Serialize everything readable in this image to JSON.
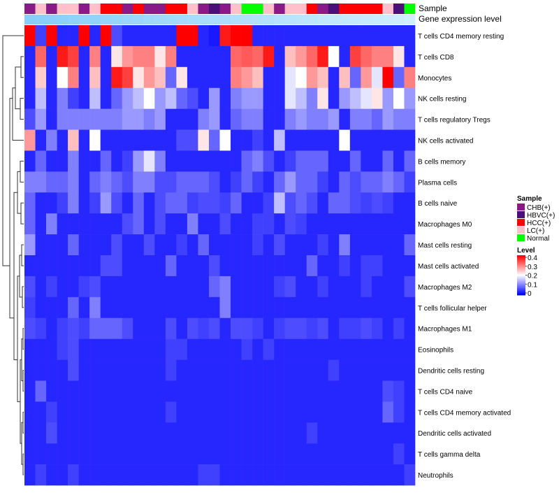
{
  "chart_data": {
    "type": "heatmap",
    "annotation_labels": [
      "Sample",
      "Gene expression level"
    ],
    "row_labels": [
      "T cells CD4 memory resting",
      "T cells CD8",
      "Monocytes",
      "NK cells resting",
      "T cells regulatory  Tregs",
      "NK cells activated",
      "B cells memory",
      "Plasma cells",
      "B cells naive",
      "Macrophages M0",
      "Mast cells resting",
      "Mast cells activated",
      "Macrophages M2",
      "T cells follicular helper",
      "Macrophages M1",
      "Eosinophils",
      "Dendritic cells resting",
      "T cells CD4 naive",
      "T cells CD4 memory activated",
      "Dendritic cells activated",
      "T cells gamma delta",
      "Neutrophils"
    ],
    "n_samples": 36,
    "sample_groups": [
      "CHB",
      "LC",
      "CHB",
      "LC",
      "LC",
      "CHB",
      "LC",
      "HCC",
      "HCC",
      "CHB",
      "HCC",
      "CHB",
      "CHB",
      "HCC",
      "HCC",
      "LC",
      "CHB",
      "HBVC",
      "CHB",
      "LC",
      "Normal",
      "Normal",
      "LC",
      "CHB",
      "LC",
      "LC",
      "HCC",
      "CHB",
      "HBVC",
      "HCC",
      "HCC",
      "HCC",
      "HCC",
      "LC",
      "HBVC",
      "Normal"
    ],
    "gene_expression_gradient": [
      "#87cefa",
      "#cfeefe"
    ],
    "values": [
      [
        0.4,
        0.05,
        0.4,
        0.03,
        0.03,
        0.4,
        0.03,
        0.4,
        0.06,
        0.03,
        0.03,
        0.03,
        0.03,
        0.03,
        0.4,
        0.4,
        0.03,
        0.02,
        0.38,
        0.4,
        0.4,
        0.03,
        0.03,
        0.03,
        0.03,
        0.03,
        0.03,
        0.03,
        0.03,
        0.03,
        0.03,
        0.03,
        0.03,
        0.03,
        0.03,
        0.03
      ],
      [
        0.03,
        0.32,
        0.03,
        0.38,
        0.35,
        0.03,
        0.3,
        0.03,
        0.22,
        0.28,
        0.3,
        0.3,
        0.22,
        0.3,
        0.03,
        0.03,
        0.03,
        0.03,
        0.03,
        0.32,
        0.33,
        0.32,
        0.38,
        0.03,
        0.25,
        0.28,
        0.32,
        0.38,
        0.2,
        0.03,
        0.35,
        0.32,
        0.3,
        0.3,
        0.22,
        0.03
      ],
      [
        0.03,
        0.24,
        0.03,
        0.2,
        0.3,
        0.03,
        0.25,
        0.03,
        0.38,
        0.35,
        0.22,
        0.28,
        0.25,
        0.08,
        0.22,
        0.03,
        0.03,
        0.03,
        0.03,
        0.3,
        0.28,
        0.25,
        0.03,
        0.03,
        0.18,
        0.2,
        0.28,
        0.25,
        0.03,
        0.25,
        0.08,
        0.28,
        0.18,
        0.4,
        0.08,
        0.3
      ],
      [
        0.03,
        0.15,
        0.03,
        0.1,
        0.05,
        0.03,
        0.15,
        0.03,
        0.08,
        0.12,
        0.15,
        0.2,
        0.12,
        0.15,
        0.08,
        0.06,
        0.03,
        0.12,
        0.03,
        0.1,
        0.12,
        0.12,
        0.03,
        0.03,
        0.18,
        0.15,
        0.1,
        0.22,
        0.03,
        0.12,
        0.15,
        0.18,
        0.22,
        0.12,
        0.2,
        0.12
      ],
      [
        0.06,
        0.12,
        0.03,
        0.1,
        0.1,
        0.1,
        0.1,
        0.1,
        0.1,
        0.12,
        0.12,
        0.1,
        0.12,
        0.03,
        0.03,
        0.03,
        0.1,
        0.12,
        0.03,
        0.08,
        0.1,
        0.1,
        0.03,
        0.03,
        0.1,
        0.12,
        0.1,
        0.1,
        0.12,
        0.03,
        0.1,
        0.1,
        0.08,
        0.12,
        0.1,
        0.1
      ],
      [
        0.28,
        0.03,
        0.1,
        0.03,
        0.25,
        0.03,
        0.2,
        0.03,
        0.03,
        0.03,
        0.03,
        0.03,
        0.03,
        0.03,
        0.06,
        0.06,
        0.22,
        0.08,
        0.2,
        0.03,
        0.03,
        0.05,
        0.03,
        0.15,
        0.03,
        0.03,
        0.03,
        0.03,
        0.03,
        0.2,
        0.03,
        0.03,
        0.03,
        0.03,
        0.03,
        0.03
      ],
      [
        0.03,
        0.08,
        0.03,
        0.03,
        0.1,
        0.03,
        0.03,
        0.08,
        0.03,
        0.05,
        0.12,
        0.18,
        0.1,
        0.03,
        0.03,
        0.03,
        0.03,
        0.03,
        0.03,
        0.03,
        0.08,
        0.1,
        0.06,
        0.03,
        0.05,
        0.08,
        0.08,
        0.08,
        0.03,
        0.03,
        0.08,
        0.03,
        0.03,
        0.08,
        0.03,
        0.08
      ],
      [
        0.1,
        0.1,
        0.08,
        0.08,
        0.1,
        0.03,
        0.08,
        0.1,
        0.08,
        0.06,
        0.1,
        0.1,
        0.06,
        0.06,
        0.08,
        0.08,
        0.08,
        0.06,
        0.03,
        0.05,
        0.08,
        0.05,
        0.03,
        0.08,
        0.12,
        0.08,
        0.08,
        0.05,
        0.03,
        0.08,
        0.06,
        0.08,
        0.08,
        0.1,
        0.08,
        0.05
      ],
      [
        0.08,
        0.03,
        0.03,
        0.05,
        0.1,
        0.03,
        0.05,
        0.12,
        0.06,
        0.03,
        0.08,
        0.03,
        0.06,
        0.08,
        0.08,
        0.05,
        0.06,
        0.06,
        0.05,
        0.08,
        0.03,
        0.03,
        0.05,
        0.15,
        0.06,
        0.08,
        0.06,
        0.03,
        0.08,
        0.08,
        0.06,
        0.05,
        0.06,
        0.05,
        0.03,
        0.03
      ],
      [
        0.08,
        0.03,
        0.1,
        0.03,
        0.03,
        0.03,
        0.03,
        0.03,
        0.03,
        0.06,
        0.08,
        0.03,
        0.06,
        0.03,
        0.03,
        0.1,
        0.03,
        0.03,
        0.06,
        0.03,
        0.03,
        0.05,
        0.05,
        0.03,
        0.06,
        0.05,
        0.03,
        0.03,
        0.03,
        0.03,
        0.03,
        0.03,
        0.03,
        0.03,
        0.03,
        0.03
      ],
      [
        0.12,
        0.03,
        0.03,
        0.03,
        0.08,
        0.03,
        0.03,
        0.03,
        0.06,
        0.03,
        0.03,
        0.06,
        0.03,
        0.03,
        0.05,
        0.03,
        0.08,
        0.03,
        0.03,
        0.03,
        0.03,
        0.05,
        0.03,
        0.06,
        0.03,
        0.03,
        0.03,
        0.05,
        0.03,
        0.1,
        0.03,
        0.03,
        0.03,
        0.03,
        0.03,
        0.08
      ],
      [
        0.03,
        0.03,
        0.03,
        0.03,
        0.03,
        0.03,
        0.03,
        0.06,
        0.06,
        0.03,
        0.03,
        0.03,
        0.03,
        0.08,
        0.03,
        0.03,
        0.03,
        0.06,
        0.03,
        0.03,
        0.03,
        0.03,
        0.03,
        0.03,
        0.03,
        0.03,
        0.08,
        0.03,
        0.03,
        0.05,
        0.03,
        0.05,
        0.05,
        0.03,
        0.03,
        0.03
      ],
      [
        0.06,
        0.03,
        0.05,
        0.03,
        0.03,
        0.05,
        0.06,
        0.03,
        0.03,
        0.03,
        0.03,
        0.03,
        0.03,
        0.03,
        0.03,
        0.03,
        0.03,
        0.08,
        0.1,
        0.03,
        0.03,
        0.03,
        0.03,
        0.05,
        0.06,
        0.03,
        0.03,
        0.05,
        0.03,
        0.03,
        0.03,
        0.05,
        0.03,
        0.03,
        0.03,
        0.06
      ],
      [
        0.05,
        0.03,
        0.03,
        0.03,
        0.08,
        0.03,
        0.1,
        0.03,
        0.03,
        0.03,
        0.03,
        0.03,
        0.03,
        0.03,
        0.03,
        0.03,
        0.03,
        0.03,
        0.1,
        0.03,
        0.03,
        0.03,
        0.03,
        0.03,
        0.03,
        0.03,
        0.03,
        0.03,
        0.03,
        0.03,
        0.03,
        0.03,
        0.03,
        0.03,
        0.03,
        0.03
      ],
      [
        0.06,
        0.05,
        0.03,
        0.05,
        0.06,
        0.05,
        0.08,
        0.08,
        0.08,
        0.06,
        0.03,
        0.03,
        0.03,
        0.06,
        0.03,
        0.06,
        0.05,
        0.06,
        0.03,
        0.06,
        0.06,
        0.05,
        0.03,
        0.05,
        0.06,
        0.06,
        0.05,
        0.06,
        0.03,
        0.05,
        0.05,
        0.06,
        0.05,
        0.03,
        0.05,
        0.03
      ],
      [
        0.03,
        0.03,
        0.03,
        0.05,
        0.06,
        0.03,
        0.03,
        0.03,
        0.03,
        0.03,
        0.03,
        0.03,
        0.03,
        0.05,
        0.05,
        0.03,
        0.03,
        0.03,
        0.03,
        0.03,
        0.05,
        0.03,
        0.05,
        0.03,
        0.03,
        0.03,
        0.03,
        0.03,
        0.03,
        0.03,
        0.03,
        0.03,
        0.03,
        0.03,
        0.03,
        0.03
      ],
      [
        0.03,
        0.03,
        0.03,
        0.03,
        0.06,
        0.03,
        0.03,
        0.03,
        0.03,
        0.03,
        0.03,
        0.03,
        0.03,
        0.05,
        0.03,
        0.03,
        0.03,
        0.03,
        0.03,
        0.03,
        0.03,
        0.03,
        0.03,
        0.03,
        0.03,
        0.03,
        0.03,
        0.03,
        0.05,
        0.03,
        0.03,
        0.03,
        0.03,
        0.03,
        0.03,
        0.03
      ],
      [
        0.03,
        0.08,
        0.03,
        0.03,
        0.03,
        0.03,
        0.03,
        0.03,
        0.03,
        0.03,
        0.03,
        0.03,
        0.03,
        0.03,
        0.03,
        0.03,
        0.03,
        0.03,
        0.03,
        0.03,
        0.03,
        0.03,
        0.03,
        0.03,
        0.03,
        0.03,
        0.03,
        0.03,
        0.03,
        0.03,
        0.03,
        0.03,
        0.03,
        0.06,
        0.05,
        0.03
      ],
      [
        0.03,
        0.03,
        0.05,
        0.03,
        0.03,
        0.03,
        0.03,
        0.03,
        0.03,
        0.03,
        0.03,
        0.03,
        0.03,
        0.05,
        0.03,
        0.03,
        0.03,
        0.03,
        0.03,
        0.03,
        0.03,
        0.03,
        0.03,
        0.03,
        0.03,
        0.03,
        0.03,
        0.03,
        0.03,
        0.03,
        0.03,
        0.03,
        0.03,
        0.08,
        0.05,
        0.03
      ],
      [
        0.03,
        0.03,
        0.06,
        0.03,
        0.03,
        0.03,
        0.03,
        0.03,
        0.03,
        0.03,
        0.03,
        0.03,
        0.03,
        0.03,
        0.03,
        0.03,
        0.03,
        0.03,
        0.03,
        0.03,
        0.03,
        0.03,
        0.03,
        0.03,
        0.03,
        0.03,
        0.05,
        0.03,
        0.03,
        0.03,
        0.03,
        0.03,
        0.03,
        0.03,
        0.03,
        0.03
      ],
      [
        0.03,
        0.03,
        0.03,
        0.03,
        0.03,
        0.03,
        0.03,
        0.03,
        0.03,
        0.03,
        0.03,
        0.03,
        0.03,
        0.03,
        0.03,
        0.03,
        0.03,
        0.03,
        0.03,
        0.03,
        0.03,
        0.03,
        0.03,
        0.03,
        0.03,
        0.03,
        0.03,
        0.03,
        0.03,
        0.03,
        0.03,
        0.03,
        0.03,
        0.03,
        0.05,
        0.03
      ],
      [
        0.03,
        0.05,
        0.03,
        0.03,
        0.05,
        0.03,
        0.03,
        0.03,
        0.03,
        0.03,
        0.03,
        0.03,
        0.03,
        0.03,
        0.03,
        0.03,
        0.05,
        0.05,
        0.03,
        0.03,
        0.03,
        0.03,
        0.03,
        0.03,
        0.03,
        0.03,
        0.03,
        0.03,
        0.03,
        0.03,
        0.03,
        0.03,
        0.03,
        0.03,
        0.03,
        0.05
      ]
    ],
    "legend": {
      "sample": {
        "title": "Sample",
        "items": [
          {
            "label": "CHB(+)",
            "color": "#8b1a89"
          },
          {
            "label": "HBVC(+)",
            "color": "#4b0f7a"
          },
          {
            "label": "HCC(+)",
            "color": "#ff0000"
          },
          {
            "label": "LC(+)",
            "color": "#ffc0cb"
          },
          {
            "label": "Normal",
            "color": "#00ff00"
          }
        ]
      },
      "level": {
        "title": "Level",
        "ticks": [
          "0.4",
          "0.3",
          "0.2",
          "0.1",
          "0"
        ],
        "range": [
          0,
          0.4
        ]
      }
    },
    "color_scale": {
      "low": "#0000ff",
      "mid": "#ffffff",
      "high": "#ff0000",
      "min": 0,
      "max": 0.4
    }
  }
}
